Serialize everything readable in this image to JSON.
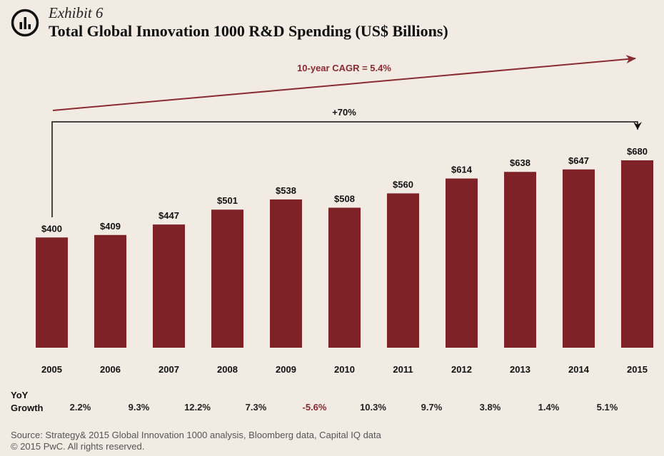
{
  "header": {
    "exhibit": "Exhibit 6",
    "title": "Total Global Innovation 1000 R&D Spending (US$ Billions)"
  },
  "colors": {
    "bar": "#7f2228",
    "accent": "#8b2a2f",
    "background": "#f1ebe4"
  },
  "annotations": {
    "cagr": "10-year CAGR = 5.4%",
    "growth": "+70%"
  },
  "chart_data": {
    "type": "bar",
    "title": "Total Global Innovation 1000 R&D Spending (US$ Billions)",
    "categories": [
      "2005",
      "2006",
      "2007",
      "2008",
      "2009",
      "2010",
      "2011",
      "2012",
      "2013",
      "2014",
      "2015"
    ],
    "values": [
      400,
      409,
      447,
      501,
      538,
      508,
      560,
      614,
      638,
      647,
      680
    ],
    "value_labels": [
      "$400",
      "$409",
      "$447",
      "$501",
      "$538",
      "$508",
      "$560",
      "$614",
      "$638",
      "$647",
      "$680"
    ],
    "ylim": [
      0,
      680
    ],
    "grid": false,
    "legend": "none"
  },
  "yoy": {
    "label_line1": "YoY",
    "label_line2": "Growth",
    "values": [
      "2.2%",
      "9.3%",
      "12.2%",
      "7.3%",
      "-5.6%",
      "10.3%",
      "9.7%",
      "3.8%",
      "1.4%",
      "5.1%"
    ]
  },
  "footer": {
    "source": "Source: Strategy& 2015 Global Innovation 1000 analysis, Bloomberg data, Capital IQ data",
    "copyright": "© 2015 PwC. All rights reserved."
  }
}
